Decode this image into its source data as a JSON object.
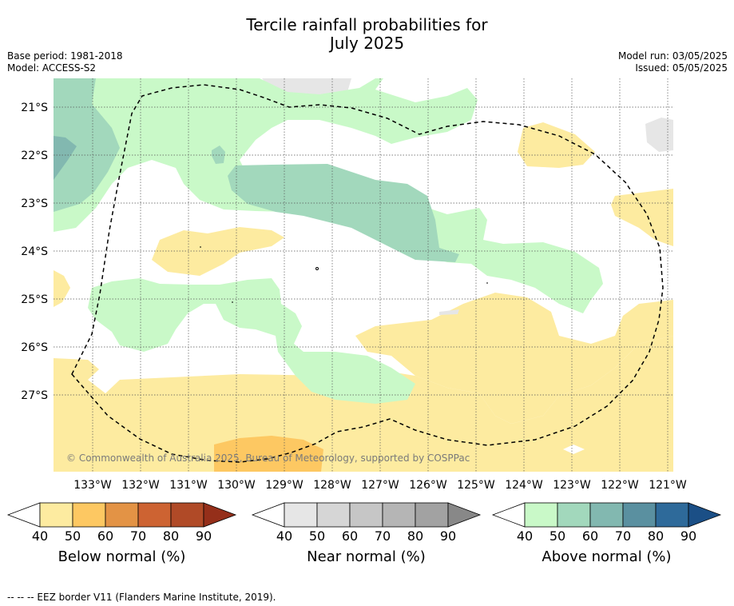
{
  "title_line1": "Tercile rainfall probabilities for",
  "title_line2": "July 2025",
  "base_period": "Base period: 1981-2018",
  "model": "Model: ACCESS-S2",
  "model_run": "Model run: 03/05/2025",
  "issued": "Issued: 05/05/2025",
  "copyright": "© Commonwealth of Australia 2025, Bureau of Meteorology, supported by COSPPac",
  "lat_labels": [
    "21°S",
    "22°S",
    "23°S",
    "24°S",
    "25°S",
    "26°S",
    "27°S"
  ],
  "lon_labels": [
    "133°W",
    "132°W",
    "131°W",
    "130°W",
    "129°W",
    "128°W",
    "127°W",
    "126°W",
    "125°W",
    "124°W",
    "123°W",
    "122°W",
    "121°W"
  ],
  "colorbars": [
    {
      "label": "Below normal (%)",
      "ticks": [
        "40",
        "50",
        "60",
        "70",
        "80",
        "90"
      ],
      "colors": [
        "#fdeba0",
        "#fdc862",
        "#e39345",
        "#cd6332",
        "#b04a27",
        "#952f1a"
      ]
    },
    {
      "label": "Near normal (%)",
      "ticks": [
        "40",
        "50",
        "60",
        "70",
        "80",
        "90"
      ],
      "colors": [
        "#e6e6e6",
        "#d6d6d6",
        "#c6c6c6",
        "#b5b5b5",
        "#a2a2a2",
        "#888888"
      ]
    },
    {
      "label": "Above normal (%)",
      "ticks": [
        "40",
        "50",
        "60",
        "70",
        "80",
        "90"
      ],
      "colors": [
        "#c9f9c8",
        "#a2d8bc",
        "#82b8b0",
        "#5a90a0",
        "#2e6a9a",
        "#1b4f86"
      ]
    }
  ],
  "footer": "--  --  -- EEZ border V11 (Flanders Marine Institute, 2019)."
}
